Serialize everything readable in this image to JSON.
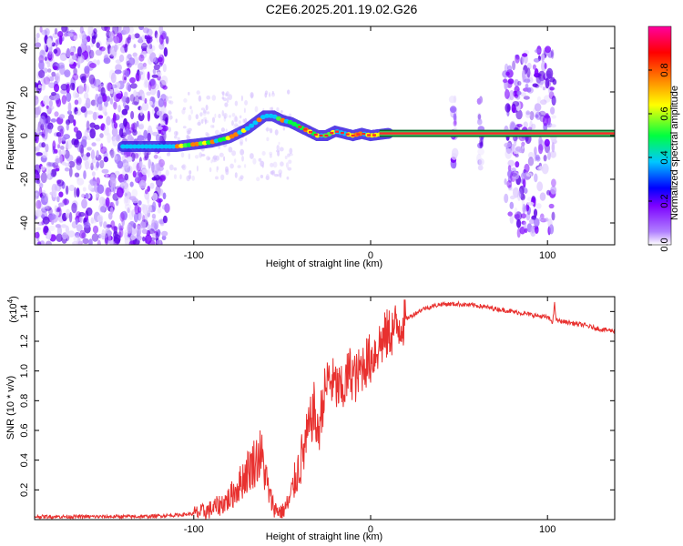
{
  "title": "C2E6.2025.201.19.02.G26",
  "chart_data": [
    {
      "type": "heatmap",
      "xlabel": "Height of straight line (km)",
      "ylabel": "Frequency (Hz)",
      "xlim": [
        -190,
        138
      ],
      "ylim": [
        -50,
        50
      ],
      "xticks": [
        -100,
        0,
        100
      ],
      "yticks": [
        -40,
        -20,
        0,
        20,
        40
      ],
      "colorbar": {
        "label": "Normalized spectral amplitude",
        "range": [
          0,
          1
        ],
        "ticks": [
          "0.0",
          "0.2",
          "0.4",
          "0.6",
          "0.8"
        ],
        "colormap": [
          "#ffffff",
          "#7c00ff",
          "#0000ff",
          "#00c8ff",
          "#00ff40",
          "#ffff00",
          "#ff8000",
          "#ff0000",
          "#ff00a0"
        ]
      },
      "ridge": {
        "x": [
          -140,
          -120,
          -110,
          -100,
          -90,
          -80,
          -70,
          -65,
          -60,
          -55,
          -50,
          -45,
          -40,
          -35,
          -30,
          -25,
          -20,
          -15,
          -10,
          -5,
          0,
          10,
          138
        ],
        "y": [
          -5,
          -5,
          -5,
          -4,
          -3,
          -1,
          3,
          6,
          9,
          9,
          7,
          6,
          4,
          2,
          0,
          0,
          2,
          1,
          0,
          1,
          0,
          1,
          1
        ]
      },
      "noise_regions": [
        {
          "x": [
            -190,
            -115
          ],
          "y": [
            -50,
            50
          ]
        },
        {
          "x": [
            46,
            48
          ],
          "y": [
            -15,
            18
          ]
        },
        {
          "x": [
            61,
            63
          ],
          "y": [
            -15,
            18
          ]
        },
        {
          "x": [
            76,
            104
          ],
          "y": [
            -45,
            40
          ]
        }
      ]
    },
    {
      "type": "line",
      "xlabel": "Height of straight line (km)",
      "ylabel": "SNR (10 * v/v)",
      "y_multiplier": "(x10",
      "y_multiplier_exp": "4",
      "xlim": [
        -190,
        138
      ],
      "ylim": [
        0,
        1.5
      ],
      "xticks": [
        -100,
        0,
        100
      ],
      "yticks": [
        0.2,
        0.4,
        0.6,
        0.8,
        1.0,
        1.2,
        1.4
      ],
      "color": "#e8312f",
      "x": [
        -190,
        -160,
        -130,
        -110,
        -100,
        -95,
        -90,
        -85,
        -80,
        -75,
        -70,
        -65,
        -62,
        -60,
        -57,
        -54,
        -50,
        -46,
        -42,
        -38,
        -35,
        -32,
        -30,
        -27,
        -24,
        -20,
        -16,
        -12,
        -8,
        -4,
        0,
        5,
        10,
        20,
        30,
        40,
        50,
        60,
        70,
        80,
        90,
        100,
        103,
        104,
        105,
        110,
        120,
        130,
        138
      ],
      "y": [
        0.02,
        0.02,
        0.02,
        0.03,
        0.04,
        0.05,
        0.07,
        0.1,
        0.14,
        0.22,
        0.32,
        0.4,
        0.44,
        0.33,
        0.15,
        0.07,
        0.05,
        0.12,
        0.3,
        0.45,
        0.6,
        0.75,
        0.55,
        0.8,
        0.95,
        0.9,
        0.85,
        1.0,
        0.95,
        1.05,
        1.08,
        1.18,
        1.25,
        1.35,
        1.42,
        1.45,
        1.45,
        1.44,
        1.42,
        1.4,
        1.38,
        1.36,
        1.33,
        1.45,
        1.34,
        1.33,
        1.31,
        1.28,
        1.27
      ]
    }
  ]
}
